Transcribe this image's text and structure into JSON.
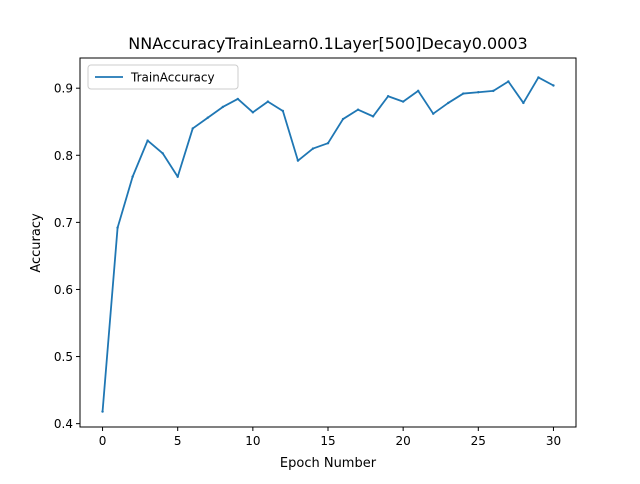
{
  "chart_data": {
    "type": "line",
    "title": "NNAccuracyTrainLearn0.1Layer[500]Decay0.0003",
    "xlabel": "Epoch Number",
    "ylabel": "Accuracy",
    "xlim": [
      -1.5,
      31.5
    ],
    "ylim": [
      0.395,
      0.945
    ],
    "x_ticks": [
      0,
      5,
      10,
      15,
      20,
      25,
      30
    ],
    "x_tick_labels": [
      "0",
      "5",
      "10",
      "15",
      "20",
      "25",
      "30"
    ],
    "y_ticks": [
      0.4,
      0.5,
      0.6,
      0.7,
      0.8,
      0.9
    ],
    "y_tick_labels": [
      "0.4",
      "0.5",
      "0.6",
      "0.7",
      "0.8",
      "0.9"
    ],
    "grid": false,
    "legend": {
      "placement": "top-left",
      "entries": [
        "TrainAccuracy"
      ]
    },
    "series": [
      {
        "name": "TrainAccuracy",
        "color": "#1f77b4",
        "x": [
          0,
          1,
          2,
          3,
          4,
          5,
          6,
          7,
          8,
          9,
          10,
          11,
          12,
          13,
          14,
          15,
          16,
          17,
          18,
          19,
          20,
          21,
          22,
          23,
          24,
          25,
          26,
          27,
          28,
          29,
          30
        ],
        "values": [
          0.418,
          0.692,
          0.768,
          0.822,
          0.803,
          0.768,
          0.84,
          0.856,
          0.872,
          0.884,
          0.864,
          0.88,
          0.866,
          0.792,
          0.81,
          0.818,
          0.854,
          0.868,
          0.858,
          0.888,
          0.88,
          0.896,
          0.862,
          0.878,
          0.892,
          0.894,
          0.896,
          0.91,
          0.878,
          0.916,
          0.904
        ]
      }
    ]
  }
}
